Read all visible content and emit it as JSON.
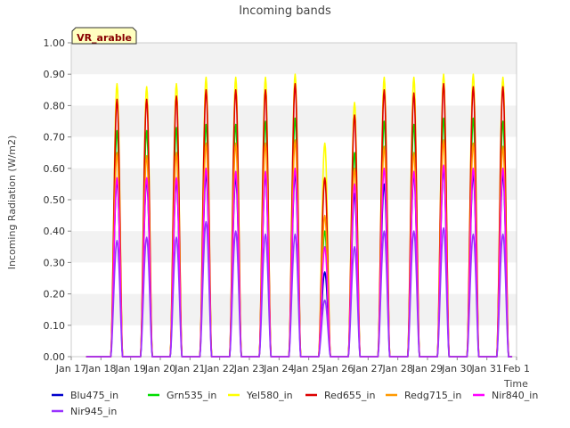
{
  "chart_data": {
    "type": "line",
    "title": "Incoming bands",
    "xlabel": "Time",
    "ylabel": "Incoming Radiation (W/m2)",
    "ylim": [
      0,
      1
    ],
    "yticks": [
      "0.00",
      "0.10",
      "0.20",
      "0.30",
      "0.40",
      "0.50",
      "0.60",
      "0.70",
      "0.80",
      "0.90",
      "1.00"
    ],
    "xticks": [
      "Jan 17",
      "Jan 18",
      "Jan 19",
      "Jan 20",
      "Jan 21",
      "Jan 22",
      "Jan 23",
      "Jan 24",
      "Jan 25",
      "Jan 26",
      "Jan 27",
      "Jan 28",
      "Jan 29",
      "Jan 30",
      "Jan 31",
      "Feb 1"
    ],
    "xlim": [
      "Jan 17",
      "Feb 1"
    ],
    "grid": "horizontal bands",
    "legend_position": "bottom",
    "annotation": "VR_arable",
    "day_peak_hour": 13,
    "series": [
      {
        "name": "Blu475_in",
        "color": "#0000cc",
        "daily_peaks": [
          0.56,
          0.56,
          0.56,
          0.58,
          0.57,
          0.58,
          0.58,
          0.27,
          0.52,
          0.55,
          0.58,
          0.6,
          0.58,
          0.58
        ]
      },
      {
        "name": "Grn535_in",
        "color": "#00dd00",
        "daily_peaks": [
          0.72,
          0.72,
          0.73,
          0.74,
          0.74,
          0.75,
          0.76,
          0.4,
          0.65,
          0.75,
          0.74,
          0.76,
          0.76,
          0.75
        ]
      },
      {
        "name": "Yel580_in",
        "color": "#ffff00",
        "daily_peaks": [
          0.87,
          0.86,
          0.87,
          0.89,
          0.89,
          0.89,
          0.9,
          0.68,
          0.81,
          0.89,
          0.89,
          0.9,
          0.9,
          0.89
        ]
      },
      {
        "name": "Red655_in",
        "color": "#dd0000",
        "daily_peaks": [
          0.82,
          0.82,
          0.83,
          0.85,
          0.85,
          0.85,
          0.87,
          0.57,
          0.77,
          0.85,
          0.84,
          0.87,
          0.86,
          0.86
        ]
      },
      {
        "name": "Redg715_in",
        "color": "#ff9900",
        "daily_peaks": [
          0.65,
          0.64,
          0.65,
          0.68,
          0.68,
          0.68,
          0.69,
          0.45,
          0.6,
          0.67,
          0.65,
          0.69,
          0.68,
          0.67
        ]
      },
      {
        "name": "Nir840_in",
        "color": "#ff00ff",
        "daily_peaks": [
          0.57,
          0.57,
          0.57,
          0.6,
          0.59,
          0.59,
          0.6,
          0.35,
          0.55,
          0.6,
          0.59,
          0.61,
          0.6,
          0.6
        ]
      },
      {
        "name": "Nir945_in",
        "color": "#9933ff",
        "daily_peaks": [
          0.37,
          0.38,
          0.38,
          0.43,
          0.4,
          0.39,
          0.39,
          0.18,
          0.35,
          0.4,
          0.4,
          0.41,
          0.39,
          0.39
        ]
      }
    ]
  }
}
